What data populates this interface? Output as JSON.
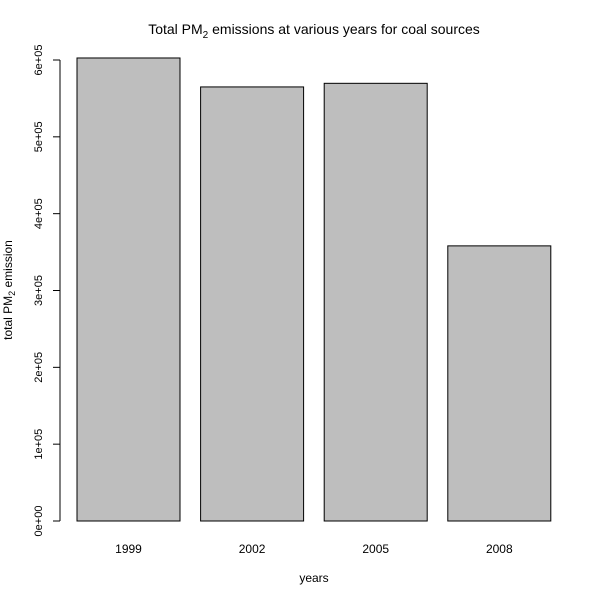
{
  "chart_data": {
    "type": "bar",
    "title": {
      "prefix": "Total PM",
      "subscript": "2",
      "suffix": " emissions at various years for coal sources"
    },
    "xlabel": "years",
    "ylabel": {
      "prefix": "total PM",
      "subscript": "2",
      "suffix": " emission"
    },
    "categories": [
      "1999",
      "2002",
      "2005",
      "2008"
    ],
    "values": [
      602624,
      564941,
      569655,
      358084
    ],
    "ylim": [
      0,
      600000
    ],
    "yticks": [
      0,
      100000,
      200000,
      300000,
      400000,
      500000,
      600000
    ],
    "ytick_labels": [
      "0e+00",
      "1e+05",
      "2e+05",
      "3e+05",
      "4e+05",
      "5e+05",
      "6e+05"
    ],
    "grid": false,
    "legend": "none",
    "bar_color": "#BEBEBE",
    "bar_border_color": "#000000"
  }
}
